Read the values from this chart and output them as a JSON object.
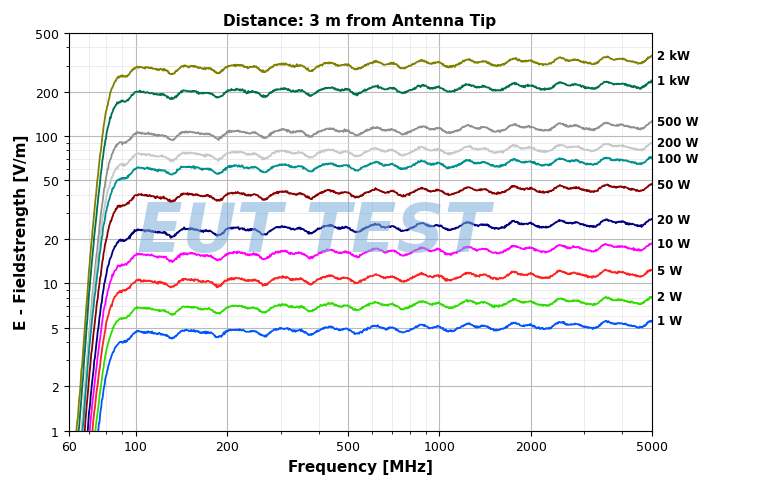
{
  "title": "Distance: 3 m from Antenna Tip",
  "xlabel": "Frequency [MHz]",
  "ylabel": "E - Fieldstrength [V/m]",
  "xmin": 60,
  "xmax": 5000,
  "ymin": 1,
  "ymax": 500,
  "watermark": "EUT TEST",
  "series": [
    {
      "label": "2 kW",
      "color": "#808000",
      "flat_val": 280,
      "peak_val": 320,
      "rise_rate": 5.0
    },
    {
      "label": "1 kW",
      "color": "#007050",
      "flat_val": 190,
      "peak_val": 240,
      "rise_rate": 5.0
    },
    {
      "label": "500 W",
      "color": "#909090",
      "flat_val": 100,
      "peak_val": 115,
      "rise_rate": 5.0
    },
    {
      "label": "200 W",
      "color": "#c8c8c8",
      "flat_val": 72,
      "peak_val": 85,
      "rise_rate": 4.5
    },
    {
      "label": "100 W",
      "color": "#009090",
      "flat_val": 58,
      "peak_val": 70,
      "rise_rate": 4.5
    },
    {
      "label": "50 W",
      "color": "#8B0000",
      "flat_val": 38,
      "peak_val": 45,
      "rise_rate": 4.5
    },
    {
      "label": "20 W",
      "color": "#000080",
      "flat_val": 22,
      "peak_val": 26,
      "rise_rate": 4.5
    },
    {
      "label": "10 W",
      "color": "#FF00FF",
      "flat_val": 15,
      "peak_val": 18,
      "rise_rate": 4.5
    },
    {
      "label": "5 W",
      "color": "#FF2020",
      "flat_val": 10,
      "peak_val": 12,
      "rise_rate": 4.5
    },
    {
      "label": "2 W",
      "color": "#30DD00",
      "flat_val": 6.5,
      "peak_val": 7.5,
      "rise_rate": 4.5
    },
    {
      "label": "1 W",
      "color": "#0055FF",
      "flat_val": 4.5,
      "peak_val": 5.5,
      "rise_rate": 4.5
    }
  ],
  "background_color": "#ffffff",
  "grid_major_color": "#bbbbbb",
  "grid_minor_color": "#dddddd",
  "label_fontsize": 11,
  "title_fontsize": 11,
  "tick_fontsize": 9
}
